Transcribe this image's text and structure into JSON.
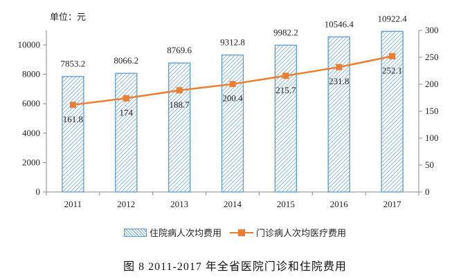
{
  "unit_label": "单位：元",
  "chart_data": {
    "type": "bar+line",
    "title": "图 8   2011-2017 年全省医院门诊和住院费用",
    "categories": [
      "2011",
      "2012",
      "2013",
      "2014",
      "2015",
      "2016",
      "2017"
    ],
    "series": [
      {
        "name": "住院病人次均费用",
        "type": "bar",
        "axis": "left",
        "color": "#5b9bd5",
        "pattern": "diagonal-hatch",
        "values": [
          7853.2,
          8066.2,
          8769.6,
          9312.8,
          9982.2,
          10546.4,
          10922.4
        ]
      },
      {
        "name": "门诊病人次均医疗费用",
        "type": "line",
        "axis": "right",
        "color": "#ed7d31",
        "marker": "square",
        "values": [
          161.8,
          174,
          188.7,
          200.4,
          215.7,
          231.8,
          252.1
        ]
      }
    ],
    "left_axis": {
      "ylim": [
        0,
        11000
      ],
      "ticks": [
        0,
        2000,
        4000,
        6000,
        8000,
        10000
      ]
    },
    "right_axis": {
      "ylim": [
        0,
        300
      ],
      "ticks": [
        0,
        50,
        100,
        150,
        200,
        250,
        300
      ]
    },
    "xlabel": "",
    "ylabel": "",
    "grid": false,
    "legend_position": "bottom"
  },
  "legend": {
    "bar_label": "住院病人次均费用",
    "line_label": "门诊病人次均医疗费用"
  },
  "caption": "图 8   2011-2017 年全省医院门诊和住院费用"
}
